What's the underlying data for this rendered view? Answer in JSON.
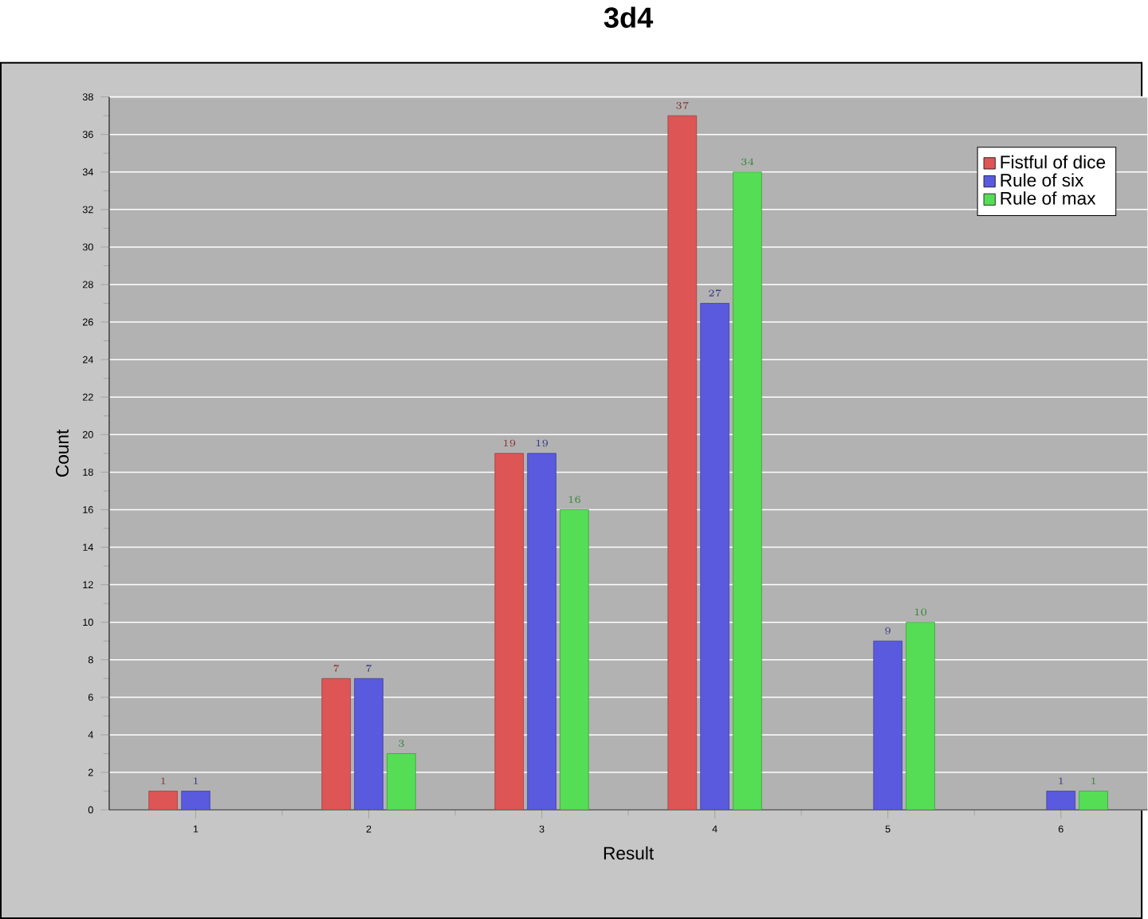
{
  "chart_data": {
    "type": "bar",
    "title": "3d4",
    "xlabel": "Result",
    "ylabel": "Count",
    "categories": [
      "1",
      "2",
      "3",
      "4",
      "5",
      "6"
    ],
    "series": [
      {
        "name": "Fistful of dice",
        "color": "#dd5555",
        "values": [
          1,
          7,
          19,
          37,
          null,
          null
        ]
      },
      {
        "name": "Rule of six",
        "color": "#5a5adf",
        "values": [
          1,
          7,
          19,
          27,
          9,
          1
        ]
      },
      {
        "name": "Rule of max",
        "color": "#55dd55",
        "values": [
          null,
          3,
          16,
          34,
          10,
          1
        ]
      }
    ],
    "ylim": [
      0,
      38
    ],
    "yticks": [
      0,
      2,
      4,
      6,
      8,
      10,
      12,
      14,
      16,
      18,
      20,
      22,
      24,
      26,
      28,
      30,
      32,
      34,
      36,
      38
    ],
    "grid": "y",
    "legend": "top right",
    "data_labels": true
  }
}
